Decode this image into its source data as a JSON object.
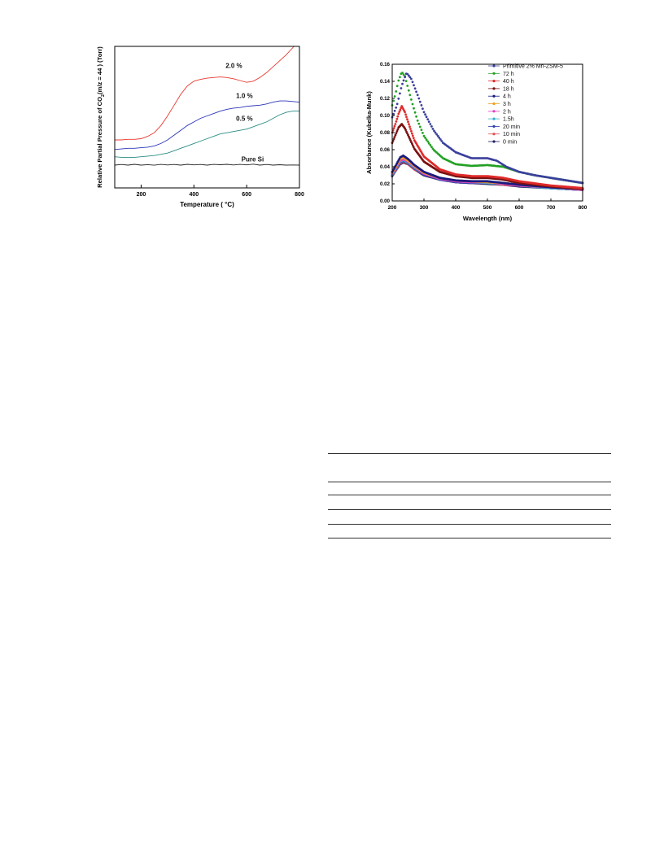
{
  "chart_data": [
    {
      "type": "line",
      "xlabel": "Temperature ( °C)",
      "ylabel_main": "Relative Partial Pressure of CO",
      "ylabel_sub": "2",
      "ylabel_tail": "(m/z = 44 ) (Torr)",
      "xticks": [
        "200",
        "400",
        "600",
        "800"
      ],
      "xlim": [
        100,
        800
      ],
      "y_ticks_shown": false,
      "grid": false,
      "legend": "none",
      "series": [
        {
          "name": "2.0 %",
          "color": "#e8382f",
          "x": [
            100,
            125,
            150,
            175,
            200,
            225,
            250,
            275,
            300,
            325,
            350,
            375,
            400,
            425,
            450,
            475,
            500,
            525,
            550,
            575,
            600,
            625,
            650,
            675,
            700,
            725,
            750,
            775,
            800
          ],
          "y": [
            0.4,
            0.4,
            0.405,
            0.405,
            0.41,
            0.43,
            0.46,
            0.52,
            0.6,
            0.69,
            0.78,
            0.85,
            0.89,
            0.905,
            0.915,
            0.92,
            0.925,
            0.92,
            0.91,
            0.895,
            0.88,
            0.89,
            0.92,
            0.96,
            1.01,
            1.06,
            1.11,
            1.17,
            1.23
          ]
        },
        {
          "name": "1.0 %",
          "color": "#2a35b8",
          "x": [
            100,
            125,
            150,
            175,
            200,
            225,
            250,
            275,
            300,
            325,
            350,
            375,
            400,
            425,
            450,
            475,
            500,
            525,
            550,
            575,
            600,
            625,
            650,
            675,
            700,
            725,
            750,
            775,
            800
          ],
          "y": [
            0.32,
            0.325,
            0.33,
            0.33,
            0.335,
            0.34,
            0.35,
            0.37,
            0.4,
            0.44,
            0.48,
            0.52,
            0.55,
            0.58,
            0.6,
            0.62,
            0.64,
            0.655,
            0.665,
            0.67,
            0.68,
            0.685,
            0.69,
            0.7,
            0.715,
            0.725,
            0.725,
            0.72,
            0.715
          ]
        },
        {
          "name": "0.5 %",
          "color": "#2a8c86",
          "x": [
            100,
            125,
            150,
            175,
            200,
            225,
            250,
            275,
            300,
            325,
            350,
            375,
            400,
            425,
            450,
            475,
            500,
            525,
            550,
            575,
            600,
            625,
            650,
            675,
            700,
            725,
            750,
            775,
            800
          ],
          "y": [
            0.26,
            0.255,
            0.255,
            0.255,
            0.26,
            0.265,
            0.27,
            0.28,
            0.29,
            0.31,
            0.33,
            0.35,
            0.37,
            0.39,
            0.41,
            0.43,
            0.45,
            0.46,
            0.47,
            0.48,
            0.49,
            0.51,
            0.53,
            0.55,
            0.58,
            0.61,
            0.63,
            0.64,
            0.64
          ]
        },
        {
          "name": "Pure Si",
          "color": "#222222",
          "x": [
            100,
            125,
            150,
            175,
            200,
            225,
            250,
            275,
            300,
            325,
            350,
            375,
            400,
            425,
            450,
            475,
            500,
            525,
            550,
            575,
            600,
            625,
            650,
            675,
            700,
            725,
            750,
            775,
            800
          ],
          "y": [
            0.19,
            0.195,
            0.19,
            0.197,
            0.19,
            0.194,
            0.189,
            0.196,
            0.191,
            0.195,
            0.19,
            0.197,
            0.192,
            0.195,
            0.19,
            0.196,
            0.193,
            0.197,
            0.191,
            0.196,
            0.192,
            0.198,
            0.19,
            0.195,
            0.19,
            0.193,
            0.19,
            0.191,
            0.19
          ]
        }
      ]
    },
    {
      "type": "scatter",
      "xlabel": "Wavelength (nm)",
      "ylabel": "Absorbance (Kubelka-Munk)",
      "xlim": [
        200,
        800
      ],
      "ylim": [
        0.0,
        0.16
      ],
      "xticks": [
        "200",
        "300",
        "400",
        "500",
        "600",
        "700",
        "800"
      ],
      "yticks": [
        "0.00",
        "0.02",
        "0.04",
        "0.06",
        "0.08",
        "0.10",
        "0.12",
        "0.14",
        "0.16"
      ],
      "grid": false,
      "legend": "top-right",
      "series": [
        {
          "name": "Primitive 2% Mn-ZSM-5",
          "color": "#3a3f9c",
          "x": [
            200,
            215,
            230,
            245,
            260,
            280,
            300,
            330,
            360,
            400,
            450,
            500,
            530,
            560,
            600,
            650,
            700,
            750,
            800
          ],
          "y": [
            0.098,
            0.112,
            0.135,
            0.15,
            0.143,
            0.124,
            0.104,
            0.083,
            0.068,
            0.057,
            0.05,
            0.05,
            0.047,
            0.04,
            0.034,
            0.03,
            0.027,
            0.024,
            0.021
          ]
        },
        {
          "name": "72 h",
          "color": "#22a022",
          "x": [
            200,
            210,
            220,
            230,
            240,
            250,
            265,
            280,
            300,
            330,
            360,
            400,
            450,
            500,
            550,
            600,
            650,
            700,
            750,
            800
          ],
          "y": [
            0.112,
            0.125,
            0.141,
            0.151,
            0.146,
            0.132,
            0.112,
            0.094,
            0.076,
            0.06,
            0.05,
            0.043,
            0.041,
            0.042,
            0.04,
            0.034,
            0.03,
            0.027,
            0.024,
            0.021
          ]
        },
        {
          "name": "40 h",
          "color": "#e02a2a",
          "x": [
            200,
            210,
            220,
            230,
            240,
            255,
            270,
            300,
            350,
            400,
            450,
            500,
            550,
            600,
            700,
            800
          ],
          "y": [
            0.08,
            0.09,
            0.102,
            0.111,
            0.104,
            0.087,
            0.071,
            0.052,
            0.037,
            0.031,
            0.029,
            0.029,
            0.027,
            0.023,
            0.018,
            0.015
          ]
        },
        {
          "name": "18 h",
          "color": "#7a1212",
          "x": [
            200,
            210,
            220,
            230,
            240,
            255,
            270,
            300,
            350,
            400,
            450,
            500,
            550,
            600,
            700,
            800
          ],
          "y": [
            0.068,
            0.077,
            0.086,
            0.09,
            0.085,
            0.073,
            0.061,
            0.046,
            0.034,
            0.029,
            0.027,
            0.027,
            0.025,
            0.021,
            0.017,
            0.014
          ]
        },
        {
          "name": "4 h",
          "color": "#1a1a80",
          "x": [
            200,
            212,
            225,
            235,
            250,
            270,
            300,
            350,
            400,
            450,
            500,
            550,
            600,
            700,
            800
          ],
          "y": [
            0.034,
            0.042,
            0.051,
            0.053,
            0.049,
            0.042,
            0.034,
            0.027,
            0.024,
            0.023,
            0.023,
            0.021,
            0.019,
            0.016,
            0.014
          ]
        },
        {
          "name": "3 h",
          "color": "#f0a020",
          "x": [
            200,
            212,
            225,
            235,
            250,
            270,
            300,
            350,
            400,
            450,
            500,
            550,
            600,
            700,
            800
          ],
          "y": [
            0.033,
            0.04,
            0.049,
            0.051,
            0.047,
            0.041,
            0.033,
            0.027,
            0.024,
            0.023,
            0.022,
            0.021,
            0.019,
            0.016,
            0.014
          ]
        },
        {
          "name": "2 h",
          "color": "#e040c0",
          "x": [
            200,
            212,
            225,
            235,
            250,
            270,
            300,
            350,
            400,
            450,
            500,
            550,
            600,
            700,
            800
          ],
          "y": [
            0.032,
            0.039,
            0.047,
            0.049,
            0.046,
            0.04,
            0.032,
            0.026,
            0.023,
            0.022,
            0.022,
            0.02,
            0.018,
            0.016,
            0.013
          ]
        },
        {
          "name": "1.5h",
          "color": "#30b0d0",
          "x": [
            200,
            212,
            225,
            235,
            250,
            270,
            300,
            350,
            400,
            450,
            500,
            550,
            600,
            700,
            800
          ],
          "y": [
            0.031,
            0.038,
            0.046,
            0.048,
            0.045,
            0.039,
            0.032,
            0.026,
            0.023,
            0.022,
            0.021,
            0.02,
            0.018,
            0.015,
            0.013
          ]
        },
        {
          "name": "20 min",
          "color": "#3040b0",
          "x": [
            200,
            212,
            225,
            235,
            250,
            270,
            300,
            350,
            400,
            450,
            500,
            550,
            600,
            700,
            800
          ],
          "y": [
            0.03,
            0.037,
            0.045,
            0.047,
            0.044,
            0.038,
            0.031,
            0.025,
            0.022,
            0.021,
            0.021,
            0.02,
            0.018,
            0.015,
            0.013
          ]
        },
        {
          "name": "10 min",
          "color": "#e05050",
          "x": [
            200,
            212,
            225,
            235,
            250,
            270,
            300,
            350,
            400,
            450,
            500,
            550,
            600,
            700,
            800
          ],
          "y": [
            0.03,
            0.036,
            0.044,
            0.046,
            0.043,
            0.037,
            0.031,
            0.025,
            0.022,
            0.021,
            0.021,
            0.019,
            0.018,
            0.015,
            0.013
          ]
        },
        {
          "name": "0 min",
          "color": "#202060",
          "x": [
            200,
            212,
            225,
            235,
            250,
            270,
            300,
            350,
            400,
            450,
            500,
            550,
            600,
            700,
            800
          ],
          "y": [
            0.029,
            0.036,
            0.043,
            0.045,
            0.043,
            0.037,
            0.03,
            0.025,
            0.022,
            0.021,
            0.02,
            0.019,
            0.017,
            0.015,
            0.013
          ]
        }
      ]
    }
  ]
}
